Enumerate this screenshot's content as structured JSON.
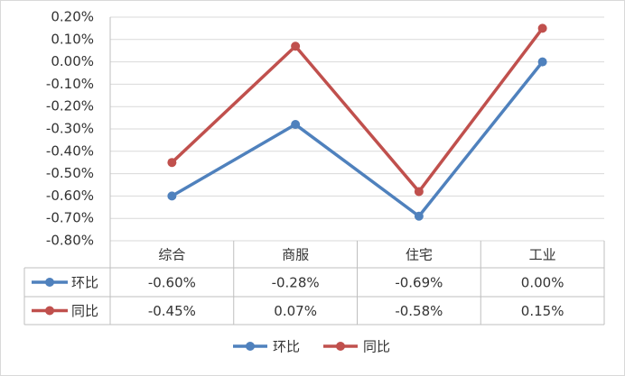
{
  "chart_data": {
    "type": "line",
    "categories": [
      "综合",
      "商服",
      "住宅",
      "工业"
    ],
    "series": [
      {
        "name": "环比",
        "color": "#4f81bd",
        "values": [
          -0.6,
          -0.28,
          -0.69,
          0.0
        ],
        "value_labels": [
          "-0.60%",
          "-0.28%",
          "-0.69%",
          "0.00%"
        ]
      },
      {
        "name": "同比",
        "color": "#c0504d",
        "values": [
          -0.45,
          0.07,
          -0.58,
          0.15
        ],
        "value_labels": [
          "-0.45%",
          "0.07%",
          "-0.58%",
          "0.15%"
        ]
      }
    ],
    "ylim": [
      -0.8,
      0.2
    ],
    "yticks": [
      {
        "value": 0.2,
        "label": "0.20%"
      },
      {
        "value": 0.1,
        "label": "0.10%"
      },
      {
        "value": 0,
        "label": "0.00%"
      },
      {
        "value": -0.1,
        "label": "-0.10%"
      },
      {
        "value": -0.2,
        "label": "-0.20%"
      },
      {
        "value": -0.3,
        "label": "-0.30%"
      },
      {
        "value": -0.4,
        "label": "-0.40%"
      },
      {
        "value": -0.5,
        "label": "-0.50%"
      },
      {
        "value": -0.6,
        "label": "-0.60%"
      },
      {
        "value": -0.7,
        "label": "-0.70%"
      },
      {
        "value": -0.8,
        "label": "-0.80%"
      }
    ],
    "grid": true,
    "legend": "bottom",
    "data_table": true
  }
}
